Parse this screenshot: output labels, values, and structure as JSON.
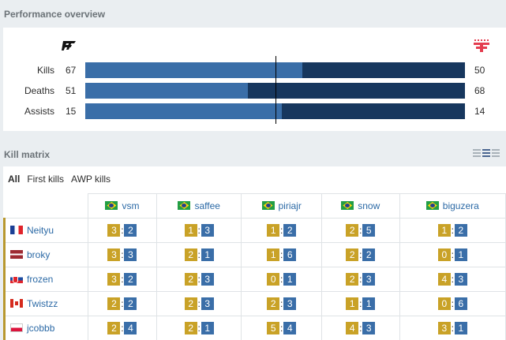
{
  "performance": {
    "title": "Performance overview",
    "left_team_logo": "paiN",
    "right_team_logo": "FaZe",
    "colors": {
      "left_team": "#3a6ea8",
      "right_team": "#17375e"
    },
    "stats": [
      {
        "label": "Kills",
        "left": 67,
        "right": 50
      },
      {
        "label": "Deaths",
        "left": 51,
        "right": 68
      },
      {
        "label": "Assists",
        "left": 15,
        "right": 14
      }
    ]
  },
  "matrix": {
    "title": "Kill matrix",
    "view_icons": [
      "list-view-icon",
      "compact-view-icon",
      "detailed-view-icon"
    ],
    "tabs": [
      {
        "label": "All",
        "active": true
      },
      {
        "label": "First kills",
        "active": false
      },
      {
        "label": "AWP kills",
        "active": false
      }
    ],
    "columns": [
      {
        "name": "vsm",
        "flag": "br"
      },
      {
        "name": "saffee",
        "flag": "br"
      },
      {
        "name": "piriajr",
        "flag": "br"
      },
      {
        "name": "snow",
        "flag": "br"
      },
      {
        "name": "biguzera",
        "flag": "br"
      }
    ],
    "rows": [
      {
        "name": "Neityu",
        "flag": "fr",
        "scores": [
          [
            3,
            2
          ],
          [
            1,
            3
          ],
          [
            1,
            2
          ],
          [
            2,
            5
          ],
          [
            1,
            2
          ]
        ]
      },
      {
        "name": "broky",
        "flag": "lv",
        "scores": [
          [
            3,
            3
          ],
          [
            2,
            1
          ],
          [
            1,
            6
          ],
          [
            2,
            2
          ],
          [
            0,
            1
          ]
        ]
      },
      {
        "name": "frozen",
        "flag": "sk",
        "scores": [
          [
            3,
            2
          ],
          [
            2,
            3
          ],
          [
            0,
            1
          ],
          [
            2,
            3
          ],
          [
            4,
            3
          ]
        ]
      },
      {
        "name": "Twistzz",
        "flag": "ca",
        "scores": [
          [
            2,
            2
          ],
          [
            2,
            3
          ],
          [
            2,
            3
          ],
          [
            1,
            1
          ],
          [
            0,
            6
          ]
        ]
      },
      {
        "name": "jcobbb",
        "flag": "pl",
        "scores": [
          [
            2,
            4
          ],
          [
            2,
            1
          ],
          [
            5,
            4
          ],
          [
            4,
            3
          ],
          [
            3,
            1
          ]
        ]
      }
    ]
  }
}
